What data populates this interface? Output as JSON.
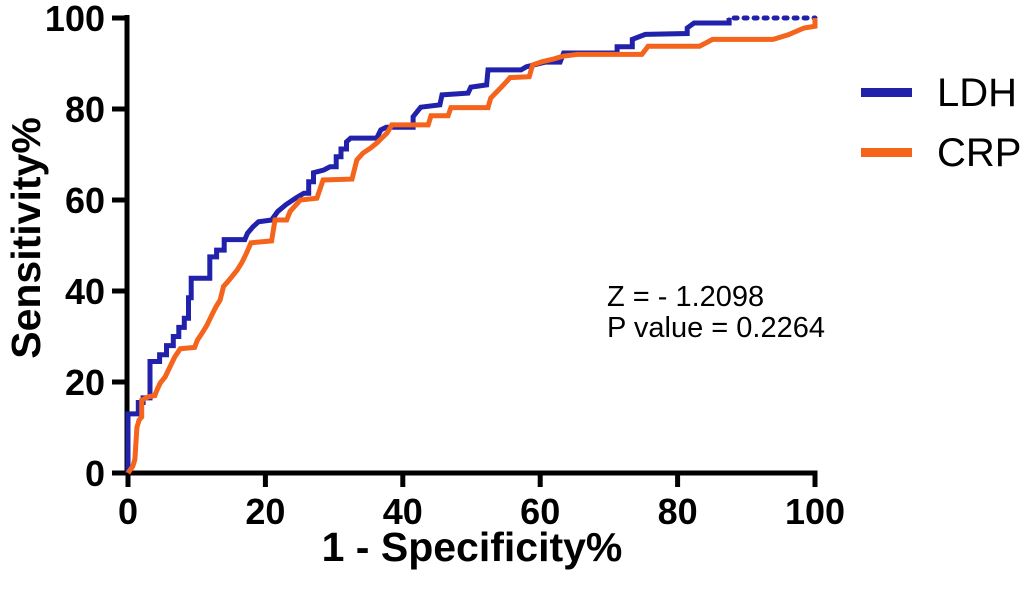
{
  "figure": {
    "y_axis_title": "Sensitivity%",
    "x_axis_title": "1 - Specificity%",
    "annotation": {
      "line1": "Z = - 1.2098",
      "line2": "P value = 0.2264"
    },
    "legend": [
      {
        "label": "LDH",
        "color": "#2121AC"
      },
      {
        "label": "CRP",
        "color": "#F4641D"
      }
    ],
    "colors": {
      "axis": "#000000",
      "background": "#FFFFFF",
      "ldh_blue": "#2121AC",
      "crp_orange": "#F4641D"
    }
  },
  "chart_data": {
    "type": "line",
    "subtype": "roc-step-curves",
    "title": "",
    "xlabel": "1 - Specificity%",
    "ylabel": "Sensitivity%",
    "xlim": [
      0,
      100
    ],
    "ylim": [
      0,
      100
    ],
    "xticks": [
      0,
      20,
      40,
      60,
      80,
      100
    ],
    "yticks": [
      0,
      20,
      40,
      60,
      80,
      100
    ],
    "grid": false,
    "legend_position": "right-outside",
    "annotations": [
      "Z = - 1.2098",
      "P value = 0.2264"
    ],
    "series": [
      {
        "name": "LDH",
        "color": "#2121AC",
        "dotted_tail_from": 87.5,
        "points": [
          [
            0,
            0
          ],
          [
            0,
            13
          ],
          [
            1.5,
            13
          ],
          [
            1.5,
            15.5
          ],
          [
            2.2,
            15.5
          ],
          [
            2.2,
            16.5
          ],
          [
            3.2,
            16.5
          ],
          [
            3.2,
            24.5
          ],
          [
            4.6,
            24.5
          ],
          [
            4.6,
            26
          ],
          [
            5.6,
            26
          ],
          [
            5.6,
            28
          ],
          [
            6.6,
            28
          ],
          [
            6.6,
            30
          ],
          [
            7.4,
            30
          ],
          [
            7.4,
            32
          ],
          [
            8.2,
            32
          ],
          [
            8.2,
            34
          ],
          [
            8.8,
            34
          ],
          [
            8.8,
            38.5
          ],
          [
            9.2,
            38.5
          ],
          [
            9.2,
            42.8
          ],
          [
            11.9,
            42.8
          ],
          [
            11.9,
            47.5
          ],
          [
            12.9,
            47.5
          ],
          [
            12.9,
            49
          ],
          [
            14,
            49
          ],
          [
            14,
            51.3
          ],
          [
            17,
            51.3
          ],
          [
            17.4,
            52.7
          ],
          [
            18.2,
            54.1
          ],
          [
            19,
            55.2
          ],
          [
            20.9,
            55.6
          ],
          [
            21.8,
            57.5
          ],
          [
            23,
            59
          ],
          [
            24.5,
            60.5
          ],
          [
            25.6,
            61.5
          ],
          [
            26.3,
            61.5
          ],
          [
            26.3,
            64
          ],
          [
            27,
            64
          ],
          [
            27,
            66
          ],
          [
            28.5,
            66.6
          ],
          [
            29.4,
            67.3
          ],
          [
            30.3,
            67.3
          ],
          [
            30.3,
            69.5
          ],
          [
            31,
            69.5
          ],
          [
            31,
            71.2
          ],
          [
            31.8,
            71.2
          ],
          [
            31.8,
            72.8
          ],
          [
            32.4,
            73.6
          ],
          [
            36.2,
            73.6
          ],
          [
            36.8,
            75.4
          ],
          [
            37.6,
            76
          ],
          [
            41.5,
            76
          ],
          [
            41.5,
            78.3
          ],
          [
            42.6,
            80.4
          ],
          [
            45.4,
            80.9
          ],
          [
            45.7,
            83.1
          ],
          [
            49.5,
            83.5
          ],
          [
            49.9,
            84.8
          ],
          [
            52.2,
            85.3
          ],
          [
            52.4,
            88.6
          ],
          [
            57.2,
            88.6
          ],
          [
            58,
            89.3
          ],
          [
            60.8,
            90.3
          ],
          [
            62.9,
            90.3
          ],
          [
            63.4,
            92.3
          ],
          [
            71.2,
            92.3
          ],
          [
            71.2,
            93.7
          ],
          [
            73.4,
            93.7
          ],
          [
            73.4,
            95.3
          ],
          [
            75.3,
            96.4
          ],
          [
            81.4,
            96.6
          ],
          [
            81.4,
            97.8
          ],
          [
            82.4,
            98.9
          ],
          [
            87.5,
            98.9
          ],
          [
            87.5,
            100
          ],
          [
            100,
            100
          ]
        ]
      },
      {
        "name": "CRP",
        "color": "#F4641D",
        "dotted_tail_from": null,
        "points": [
          [
            0,
            0
          ],
          [
            0.7,
            1.5
          ],
          [
            1,
            3
          ],
          [
            1.3,
            10
          ],
          [
            1.6,
            11.6
          ],
          [
            2,
            12.3
          ],
          [
            2,
            16
          ],
          [
            3,
            16.8
          ],
          [
            3.9,
            17
          ],
          [
            4.3,
            18.5
          ],
          [
            4.7,
            19.8
          ],
          [
            5.4,
            21.1
          ],
          [
            6.1,
            23.3
          ],
          [
            6.8,
            25.5
          ],
          [
            7.6,
            27.3
          ],
          [
            9.7,
            27.6
          ],
          [
            10.1,
            29.2
          ],
          [
            10.8,
            30.8
          ],
          [
            11.5,
            32.5
          ],
          [
            12.2,
            34.7
          ],
          [
            12.8,
            36.5
          ],
          [
            13.4,
            38
          ],
          [
            13.9,
            41
          ],
          [
            14.6,
            42.2
          ],
          [
            15.2,
            43.3
          ],
          [
            15.9,
            44.6
          ],
          [
            16.6,
            46.3
          ],
          [
            17.2,
            48.2
          ],
          [
            17.9,
            50.6
          ],
          [
            20.9,
            51
          ],
          [
            21.4,
            55.6
          ],
          [
            23.1,
            55.6
          ],
          [
            23.6,
            57.5
          ],
          [
            25.1,
            60
          ],
          [
            27.5,
            60.4
          ],
          [
            28.4,
            64.4
          ],
          [
            32.6,
            64.6
          ],
          [
            33.3,
            68.8
          ],
          [
            34.2,
            70.3
          ],
          [
            35.3,
            71.4
          ],
          [
            36.2,
            72.5
          ],
          [
            37.7,
            74.7
          ],
          [
            38.4,
            76.5
          ],
          [
            43.7,
            76.5
          ],
          [
            44.1,
            78.5
          ],
          [
            46.6,
            78.5
          ],
          [
            47,
            80.3
          ],
          [
            52.4,
            80.3
          ],
          [
            52.8,
            82.4
          ],
          [
            53.5,
            83.5
          ],
          [
            54.2,
            84.6
          ],
          [
            54.9,
            85.7
          ],
          [
            55.6,
            86.9
          ],
          [
            58.4,
            87.1
          ],
          [
            58.9,
            89.7
          ],
          [
            60.3,
            90.4
          ],
          [
            62,
            91
          ],
          [
            63.3,
            91.6
          ],
          [
            65.4,
            92
          ],
          [
            74.8,
            92
          ],
          [
            75.7,
            93.8
          ],
          [
            83.2,
            93.8
          ],
          [
            85.1,
            95.3
          ],
          [
            93.9,
            95.3
          ],
          [
            96.1,
            96.3
          ],
          [
            98.4,
            97.8
          ],
          [
            100,
            98.2
          ],
          [
            100,
            100
          ]
        ]
      }
    ]
  }
}
